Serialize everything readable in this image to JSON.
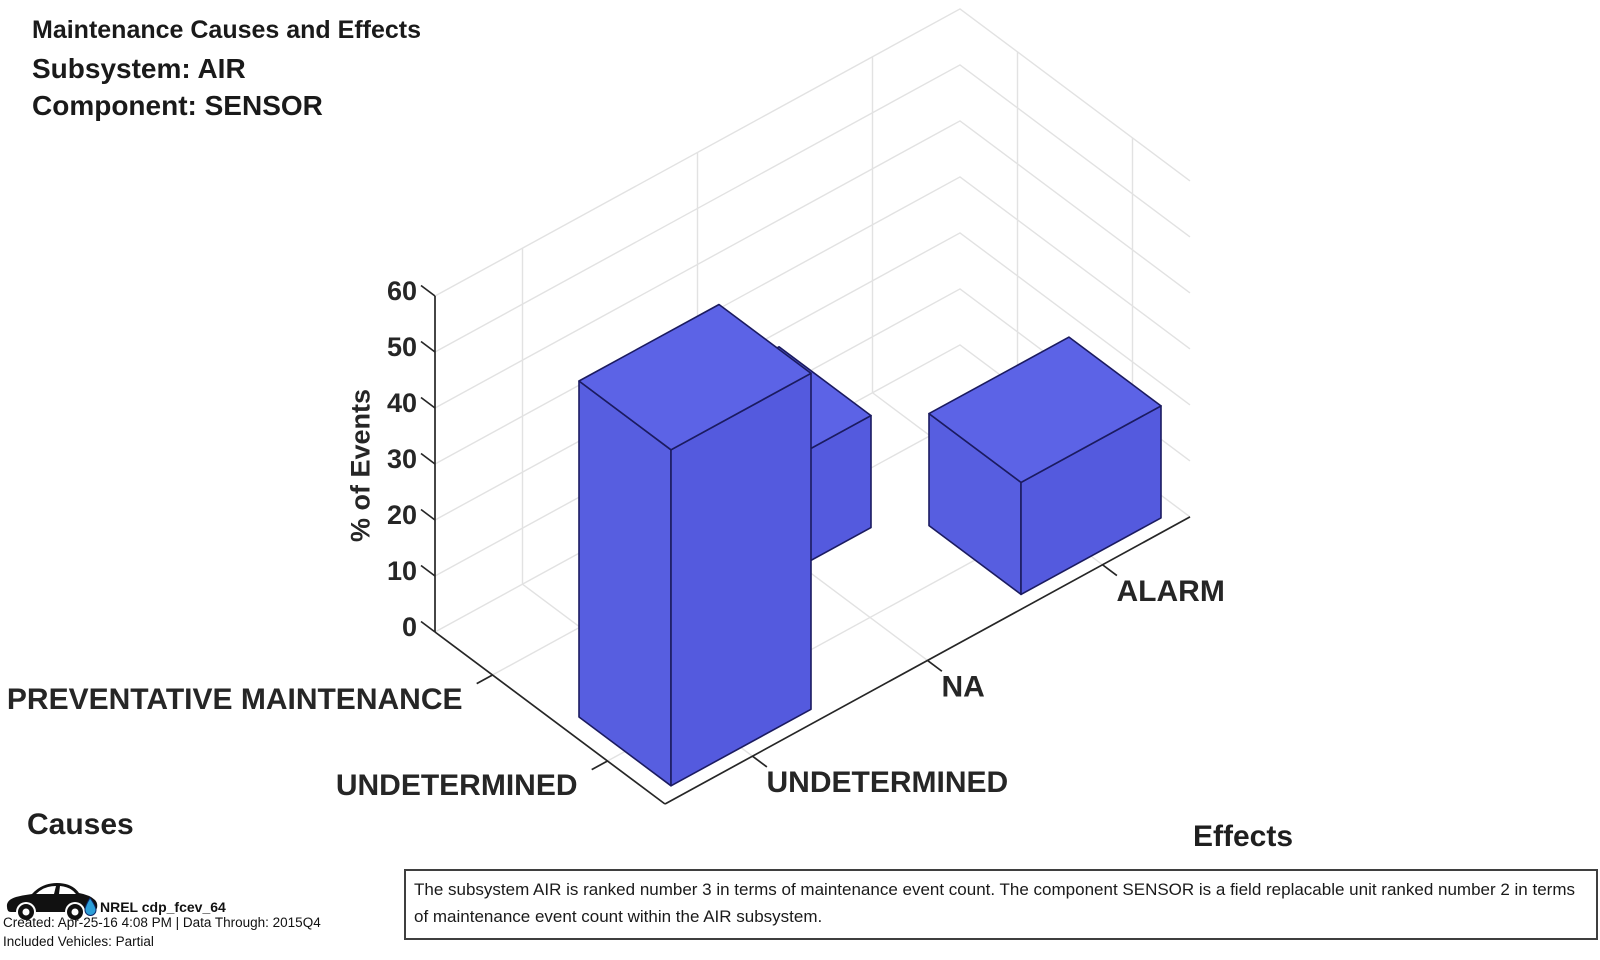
{
  "title": {
    "line1": "Maintenance Causes and Effects",
    "line2": "Subsystem: AIR",
    "line3": "Component: SENSOR"
  },
  "chart_data": {
    "type": "bar",
    "subtype": "3d-bar",
    "title": "Maintenance Causes and Effects",
    "causes_axis_label": "Causes",
    "effects_axis_label": "Effects",
    "z_axis_label": "% of Events",
    "causes_categories": [
      "PREVENTATIVE MAINTENANCE",
      "UNDETERMINED"
    ],
    "effects_categories": [
      "UNDETERMINED",
      "NA",
      "ALARM"
    ],
    "series": [
      {
        "cause": "PREVENTATIVE MAINTENANCE",
        "values": [
          0,
          20,
          0
        ]
      },
      {
        "cause": "UNDETERMINED",
        "values": [
          60,
          0,
          20
        ]
      }
    ],
    "zlim": [
      0,
      60
    ],
    "zticks": [
      0,
      10,
      20,
      30,
      40,
      50,
      60
    ],
    "grid": true,
    "bar_color": "#575ee0",
    "bar_top_color": "#5c63e6",
    "bar_front_color": "#545ade",
    "bar_edge_color": "#1b1b60",
    "grid_color": "#e2e2e2",
    "axis_color": "#262626"
  },
  "footer": {
    "logo_label": "NREL cdp_fcev_64",
    "created_line": "Created: Apr-25-16  4:08 PM | Data Through: 2015Q4",
    "included_line": "Included Vehicles: Partial"
  },
  "caption": {
    "text": "The subsystem AIR is ranked number 3 in terms of maintenance event count.  The component SENSOR is a field replacable unit ranked number 2 in terms of maintenance event count within the AIR subsystem."
  }
}
